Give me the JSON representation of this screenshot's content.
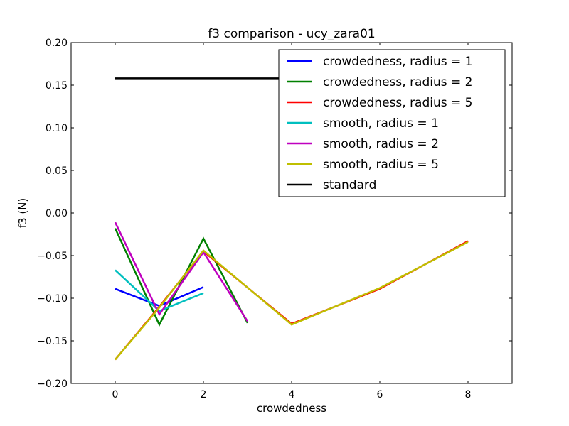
{
  "chart_data": {
    "type": "line",
    "title": "f3 comparison - ucy_zara01",
    "xlabel": "crowdedness",
    "ylabel": "f3 (N)",
    "xlim": [
      -1,
      9
    ],
    "ylim": [
      -0.2,
      0.2
    ],
    "xticks": [
      0,
      2,
      4,
      6,
      8
    ],
    "yticks": [
      -0.2,
      -0.15,
      -0.1,
      -0.05,
      0.0,
      0.05,
      0.1,
      0.15,
      0.2
    ],
    "ytick_labels": [
      "−0.20",
      "−0.15",
      "−0.10",
      "−0.05",
      "0.00",
      "0.05",
      "0.10",
      "0.15",
      "0.20"
    ],
    "grid": false,
    "legend_position": "top-right",
    "series": [
      {
        "name": "crowdedness, radius = 1",
        "color": "#0000ff",
        "x": [
          0,
          1,
          2
        ],
        "values": [
          -0.089,
          -0.109,
          -0.087
        ]
      },
      {
        "name": "crowdedness, radius = 2",
        "color": "#008000",
        "x": [
          0,
          1,
          2,
          3
        ],
        "values": [
          -0.018,
          -0.131,
          -0.03,
          -0.129
        ]
      },
      {
        "name": "crowdedness, radius = 5",
        "color": "#ff0000",
        "x": [
          0,
          1,
          2,
          4,
          6,
          8
        ],
        "values": [
          -0.172,
          -0.11,
          -0.045,
          -0.13,
          -0.089,
          -0.033
        ]
      },
      {
        "name": "smooth, radius = 1",
        "color": "#00bfbf",
        "x": [
          0,
          1,
          2
        ],
        "values": [
          -0.067,
          -0.115,
          -0.094
        ]
      },
      {
        "name": "smooth, radius = 2",
        "color": "#bf00bf",
        "x": [
          0,
          1,
          2,
          3
        ],
        "values": [
          -0.011,
          -0.119,
          -0.046,
          -0.127
        ]
      },
      {
        "name": "smooth, radius = 5",
        "color": "#bfbf00",
        "x": [
          0,
          1,
          2,
          4,
          6,
          8
        ],
        "values": [
          -0.172,
          -0.111,
          -0.044,
          -0.131,
          -0.088,
          -0.034
        ]
      },
      {
        "name": "standard",
        "color": "#000000",
        "x": [
          0,
          8
        ],
        "values": [
          0.158,
          0.158
        ]
      }
    ]
  }
}
